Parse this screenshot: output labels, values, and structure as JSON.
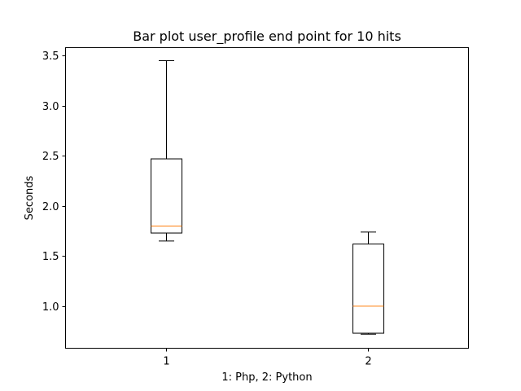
{
  "chart_data": {
    "type": "box",
    "title": "Bar plot user_profile end point for 10 hits",
    "xlabel": "1: Php, 2: Python",
    "ylabel": "Seconds",
    "categories": [
      "1",
      "2"
    ],
    "ylim": [
      0.58,
      3.58
    ],
    "yticks": [
      1.0,
      1.5,
      2.0,
      2.5,
      3.0,
      3.5
    ],
    "ytick_labels": [
      "1.0",
      "1.5",
      "2.0",
      "2.5",
      "3.0",
      "3.5"
    ],
    "grid": false,
    "boxes": [
      {
        "category": "1",
        "whisker_low": 1.65,
        "q1": 1.73,
        "median": 1.8,
        "q3": 2.47,
        "whisker_high": 3.45
      },
      {
        "category": "2",
        "whisker_low": 0.72,
        "q1": 0.73,
        "median": 1.0,
        "q3": 1.62,
        "whisker_high": 1.74
      }
    ],
    "colors": {
      "box": "#000000",
      "median": "#ff7f0e"
    }
  }
}
